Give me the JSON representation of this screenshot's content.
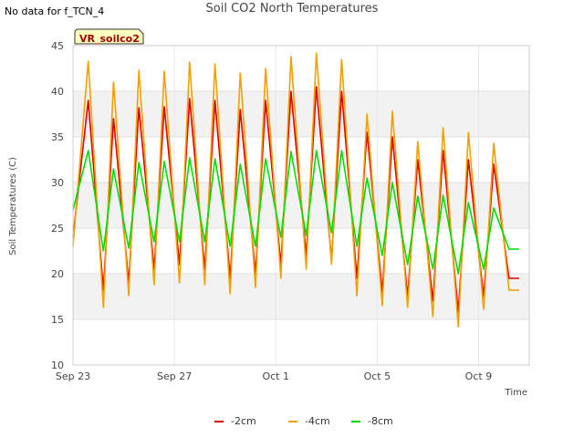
{
  "header": {
    "no_data_note": "No data for f_TCN_4",
    "title": "Soil CO2 North Temperatures"
  },
  "badge": {
    "label": "VR_soilco2"
  },
  "chart_data": {
    "type": "line",
    "title": "Soil CO2 North Temperatures",
    "xlabel": "Time",
    "ylabel": "Soil Temperatures (C)",
    "ylim": [
      10,
      45
    ],
    "yticks": [
      10,
      15,
      20,
      25,
      30,
      35,
      40,
      45
    ],
    "x_unit": "days since Sep 23",
    "xlim": [
      0,
      18
    ],
    "xticks": [
      {
        "value": 0,
        "label": "Sep 23"
      },
      {
        "value": 4,
        "label": "Sep 27"
      },
      {
        "value": 8,
        "label": "Oct 1"
      },
      {
        "value": 12,
        "label": "Oct 5"
      },
      {
        "value": 16,
        "label": "Oct 9"
      }
    ],
    "grid": "horizontal bands",
    "legend_position": "bottom",
    "x": [
      0.0,
      0.6,
      1.2,
      1.6,
      2.2,
      2.6,
      3.2,
      3.6,
      4.2,
      4.6,
      5.2,
      5.6,
      6.2,
      6.6,
      7.2,
      7.6,
      8.2,
      8.6,
      9.2,
      9.6,
      10.2,
      10.6,
      11.2,
      11.6,
      12.2,
      12.6,
      13.2,
      13.6,
      14.2,
      14.6,
      15.2,
      15.6,
      16.2,
      16.6,
      17.2,
      17.6
    ],
    "series": [
      {
        "name": "-2cm",
        "color": "#dd0000",
        "values": [
          24.0,
          39.0,
          18.2,
          37.0,
          19.0,
          38.2,
          20.5,
          38.3,
          21.0,
          39.2,
          20.5,
          39.0,
          19.5,
          38.0,
          20.0,
          39.0,
          21.0,
          40.0,
          22.0,
          40.5,
          21.5,
          40.0,
          19.5,
          35.5,
          18.0,
          35.0,
          17.5,
          32.5,
          17.0,
          33.5,
          15.8,
          32.5,
          17.5,
          32.0,
          19.5,
          19.5
        ]
      },
      {
        "name": "-4cm",
        "color": "#f0a000",
        "values": [
          23.0,
          43.3,
          16.3,
          41.0,
          17.6,
          42.3,
          18.8,
          42.2,
          19.0,
          43.2,
          18.8,
          43.0,
          17.8,
          42.0,
          18.5,
          42.5,
          19.5,
          43.8,
          20.5,
          44.2,
          21.0,
          43.5,
          17.6,
          37.5,
          16.5,
          37.8,
          16.3,
          34.5,
          15.3,
          36.0,
          14.2,
          35.5,
          16.1,
          34.3,
          18.2,
          18.2
        ]
      },
      {
        "name": "-8cm",
        "color": "#00dd00",
        "values": [
          27.0,
          33.5,
          22.5,
          31.5,
          22.8,
          32.2,
          23.5,
          32.3,
          23.5,
          32.7,
          23.5,
          32.6,
          23.0,
          32.0,
          23.0,
          32.6,
          24.0,
          33.4,
          24.2,
          33.5,
          24.5,
          33.5,
          23.0,
          30.5,
          22.0,
          30.0,
          21.0,
          28.5,
          20.5,
          28.6,
          20.0,
          27.8,
          20.5,
          27.2,
          22.7,
          22.7
        ]
      }
    ]
  }
}
